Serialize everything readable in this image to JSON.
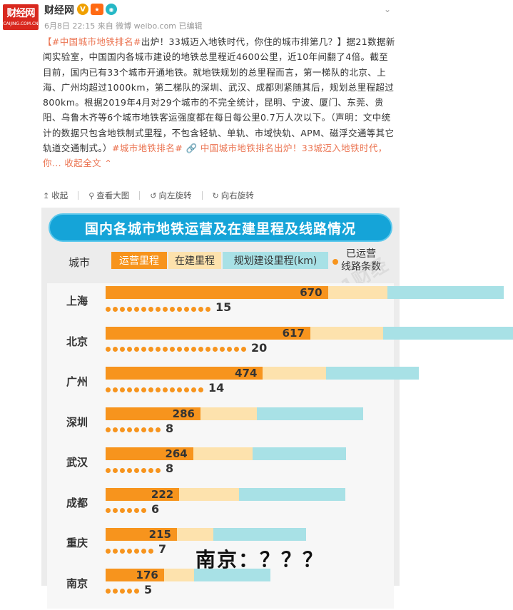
{
  "header": {
    "logo_text": "财经网",
    "logo_sub": "CAIJING.COM.CN",
    "author": "财经网",
    "badge_v": "V",
    "meta": "6月8日 22:15 来自 微博 weibo.com   已编辑",
    "menu_icon": "chevron-down-icon"
  },
  "post": {
    "tag_open": "【#中国城市地铁排名#",
    "text_1": "出炉！33城迈入地铁时代，你住的城市排第几？】据21数据新闻实验室，中国国内各城市建设的地铁总里程近4600公里，近10年间翻了4倍。截至目前，国内已有33个城市开通地铁。就地铁规划的总里程而言，第一梯队的北京、上海、广州均超过1000km，第二梯队的深圳、武汉、成都则紧随其后，规划总里程超过800km。根据2019年4月对29个城市的不完全统计，昆明、宁波、厦门、东莞、贵阳、乌鲁木齐等6个城市地铁客运强度都在每日每公里0.7万人次以下。（声明：文中统计的数据只包含地铁制式里程，不包含轻轨、单轨、市域快轨、APM、磁浮交通等其它轨道交通制式。）",
    "tag_2": "#城市地铁排名#",
    "link_icon": "link-icon",
    "link_text": "中国城市地铁排名出炉！33城迈入地铁时代，你...",
    "collapse_text": "收起全文",
    "collapse_icon": "chevron-up-icon"
  },
  "toolbar": {
    "items": [
      {
        "label": "收起",
        "icon": "collapse-icon"
      },
      {
        "label": "查看大图",
        "icon": "search-icon"
      },
      {
        "label": "向左旋转",
        "icon": "rotate-left-icon"
      },
      {
        "label": "向右旋转",
        "icon": "rotate-right-icon"
      }
    ]
  },
  "infographic": {
    "title": "国内各城市地铁运营及在建里程及线路情况",
    "legend": {
      "city": "城市",
      "operating": "运营里程",
      "building": "在建里程",
      "planned": "规划建设里程(km)",
      "lines_1": "已运营",
      "lines_2": "线路条数"
    },
    "overlay_text": "南京：？？？",
    "watermark": "21财经"
  },
  "chart_data": {
    "type": "bar",
    "title": "国内各城市地铁运营及在建里程及线路情况",
    "categories": [
      "上海",
      "北京",
      "广州",
      "深圳",
      "武汉",
      "成都",
      "重庆",
      "南京"
    ],
    "series": [
      {
        "name": "运营里程",
        "values": [
          670,
          617,
          474,
          286,
          264,
          222,
          215,
          176
        ]
      },
      {
        "name": "在建里程",
        "values": [
          180,
          220,
          190,
          170,
          180,
          180,
          110,
          90
        ]
      },
      {
        "name": "规划建设里程(km)",
        "values": [
          350,
          390,
          280,
          320,
          280,
          320,
          280,
          230
        ]
      }
    ],
    "lines": [
      15,
      20,
      14,
      8,
      8,
      6,
      7,
      5
    ],
    "colors": {
      "operating": "#f7941d",
      "building": "#fde2ad",
      "planned": "#a8e1e6"
    }
  }
}
